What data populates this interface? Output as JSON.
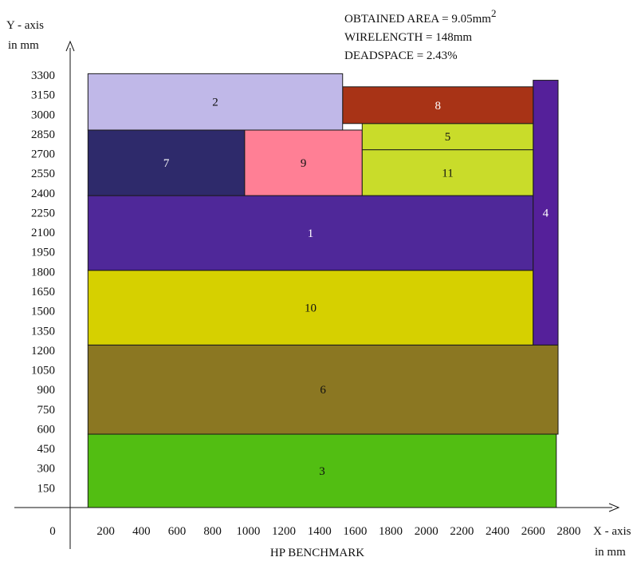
{
  "chart_data": {
    "type": "floorplan",
    "title": "",
    "caption": "HP BENCHMARK",
    "xlabel": "X - axis",
    "xunit": "in mm",
    "ylabel": "Y - axis",
    "yunit": "in mm",
    "origin_label": "0",
    "xlim": [
      0,
      2900
    ],
    "ylim": [
      0,
      3300
    ],
    "x_ticks": [
      200,
      400,
      600,
      800,
      1000,
      1200,
      1400,
      1600,
      1800,
      2000,
      2200,
      2400,
      2600,
      2800
    ],
    "y_ticks": [
      150,
      300,
      450,
      600,
      750,
      900,
      1050,
      1200,
      1350,
      1500,
      1650,
      1800,
      1950,
      2100,
      2250,
      2400,
      2550,
      2700,
      2850,
      3000,
      3150,
      3300
    ],
    "stats": [
      {
        "text": "OBTAINED AREA = 9.05mm",
        "sup": "2"
      },
      {
        "text": "WIRELENGTH = 148mm",
        "sup": ""
      },
      {
        "text": "DEADSPACE = 2.43%",
        "sup": ""
      }
    ],
    "blocks": [
      {
        "label": "3",
        "x0": 100,
        "y0": 0,
        "x1": 2730,
        "y1": 560,
        "color": "#52be12",
        "text_color": "#111111"
      },
      {
        "label": "6",
        "x0": 100,
        "y0": 560,
        "x1": 2740,
        "y1": 1240,
        "color": "#8b7722",
        "text_color": "#111111"
      },
      {
        "label": "10",
        "x0": 100,
        "y0": 1240,
        "x1": 2600,
        "y1": 1810,
        "color": "#d6d000",
        "text_color": "#111111"
      },
      {
        "label": "1",
        "x0": 100,
        "y0": 1810,
        "x1": 2600,
        "y1": 2380,
        "color": "#4f2899",
        "text_color": "#ffffff"
      },
      {
        "label": "4",
        "x0": 2600,
        "y0": 1240,
        "x1": 2740,
        "y1": 3260,
        "color": "#55209a",
        "text_color": "#ffffff"
      },
      {
        "label": "7",
        "x0": 100,
        "y0": 2380,
        "x1": 980,
        "y1": 2880,
        "color": "#2e2a6b",
        "text_color": "#ffffff"
      },
      {
        "label": "9",
        "x0": 980,
        "y0": 2380,
        "x1": 1640,
        "y1": 2880,
        "color": "#ff7f95",
        "text_color": "#111111"
      },
      {
        "label": "11",
        "x0": 1640,
        "y0": 2380,
        "x1": 2600,
        "y1": 2730,
        "color": "#c9dc2a",
        "text_color": "#111111"
      },
      {
        "label": "5",
        "x0": 1640,
        "y0": 2730,
        "x1": 2600,
        "y1": 2930,
        "color": "#c9dc2a",
        "text_color": "#111111"
      },
      {
        "label": "8",
        "x0": 1530,
        "y0": 2930,
        "x1": 2600,
        "y1": 3210,
        "color": "#a83316",
        "text_color": "#ffffff"
      },
      {
        "label": "2",
        "x0": 100,
        "y0": 2880,
        "x1": 1530,
        "y1": 3310,
        "color": "#c0b8e8",
        "text_color": "#111111"
      }
    ]
  }
}
